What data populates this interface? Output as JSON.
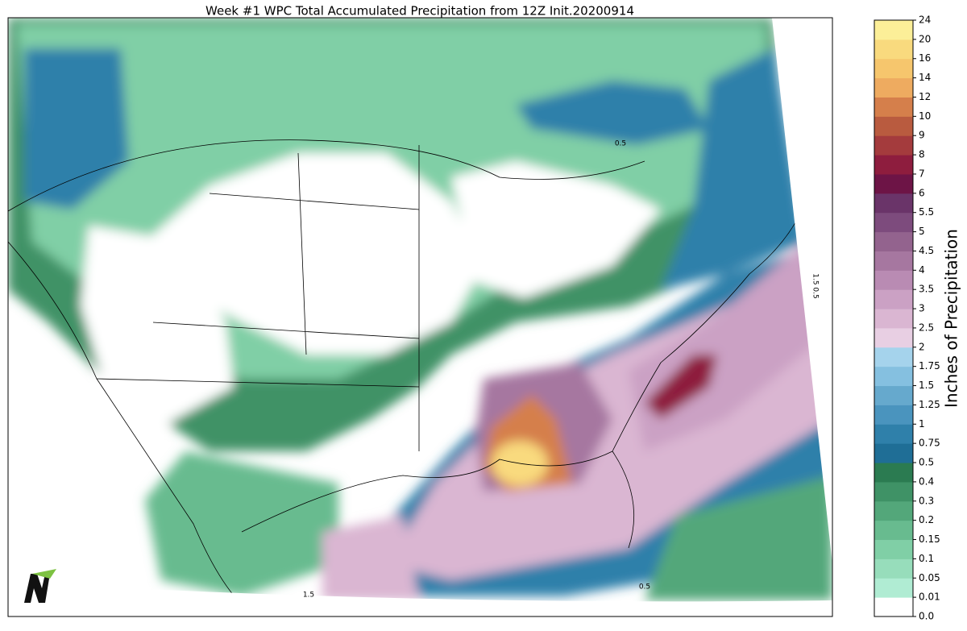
{
  "title": "Week #1 WPC Total Accumulated Precipitation from 12Z Init.20200914",
  "colorbar": {
    "label": "Inches of Precipitation",
    "ticks": [
      {
        "value": 0,
        "label": "0.0"
      },
      0.01,
      0.05,
      0.1,
      0.15,
      0.2,
      0.3,
      0.4,
      0.5,
      0.75,
      1,
      1.25,
      1.5,
      1.75,
      2,
      2.5,
      3,
      3.5,
      4,
      4.5,
      5,
      5.5,
      6,
      7,
      8,
      9,
      10,
      12,
      14,
      16,
      20,
      24
    ],
    "colors": [
      "#ffffff",
      "#b0ecd3",
      "#97ddbb",
      "#80cfa6",
      "#68bb8f",
      "#53a77a",
      "#3f9266",
      "#2b7b51",
      "#1f6e96",
      "#2f80aa",
      "#4a94be",
      "#66a9cd",
      "#85c0e0",
      "#a5d3ec",
      "#e8cfe3",
      "#dab6d2",
      "#cba1c4",
      "#b98bb3",
      "#a677a0",
      "#93638e",
      "#7d4b7d",
      "#6a3469",
      "#6d1446",
      "#8e1d3e",
      "#a43b3d",
      "#b95b3f",
      "#d57f4b",
      "#eeab60",
      "#f6c66d",
      "#f9da7e",
      "#fcef98"
    ]
  },
  "contour_labels": [
    "0.5",
    "1.5 0.5",
    "0.5",
    "1.5"
  ]
}
